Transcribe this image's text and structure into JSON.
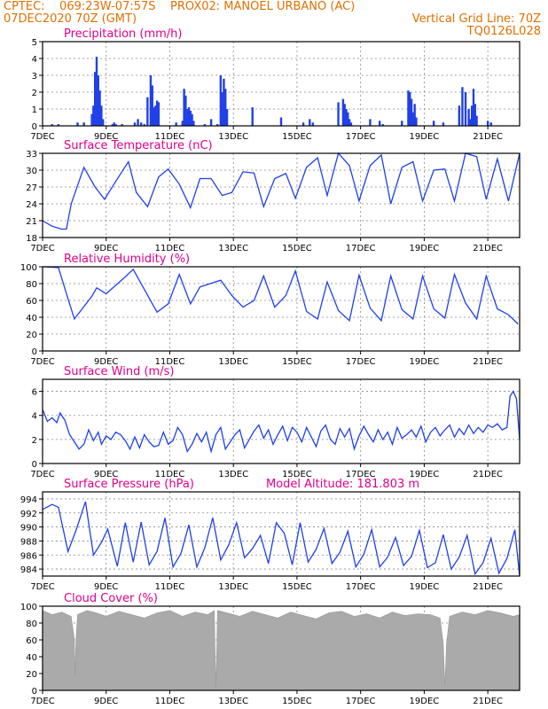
{
  "header": {
    "station": "CPTEC:    069:23W-07:57S    PROX02: MANOEL URBANO (AC)",
    "run": "07DEC2020 70Z (GMT)",
    "grid_note": "Vertical Grid Line: 70Z",
    "code": "TQ0126L028"
  },
  "colors": {
    "series": "#2040e8",
    "cloud": "#aaaaaa",
    "title": "#e0008a",
    "header": "#e07000",
    "grid": "#888888"
  },
  "chart_data": [
    {
      "id": "precip",
      "type": "bar",
      "title": "Precipitation (mm/h)",
      "ylim": [
        0,
        5
      ],
      "yticks": [
        "0",
        "1",
        "2",
        "3",
        "4",
        "5"
      ],
      "xticks": [
        "7DEC",
        "9DEC",
        "11DEC",
        "13DEC",
        "15DEC",
        "17DEC",
        "19DEC",
        "21DEC"
      ],
      "xlim": [
        0,
        15
      ],
      "x": [
        0.3,
        0.5,
        1.1,
        1.3,
        1.55,
        1.6,
        1.65,
        1.7,
        1.75,
        1.8,
        1.85,
        1.9,
        2.2,
        2.25,
        2.3,
        2.5,
        2.9,
        3.0,
        3.1,
        3.2,
        3.3,
        3.4,
        3.45,
        3.5,
        3.55,
        3.6,
        3.65,
        4.2,
        4.4,
        4.45,
        4.5,
        4.55,
        4.6,
        4.65,
        4.7,
        4.75,
        5.1,
        5.3,
        5.5,
        5.6,
        5.65,
        5.7,
        5.75,
        5.8,
        6.6,
        7.5,
        8.2,
        8.4,
        8.5,
        9.3,
        9.45,
        9.5,
        9.55,
        9.6,
        9.65,
        9.7,
        10.3,
        10.6,
        10.7,
        11.3,
        11.5,
        11.55,
        11.6,
        11.65,
        11.7,
        11.75,
        12.3,
        12.6,
        13.1,
        13.2,
        13.3,
        13.4,
        13.45,
        13.5,
        13.55,
        13.6,
        13.65,
        14.0,
        14.1
      ],
      "values": [
        0.1,
        0.1,
        0.2,
        0.2,
        0.7,
        1.2,
        3.2,
        4.1,
        3.0,
        2.1,
        1.2,
        0.4,
        0.1,
        0.2,
        0.1,
        0.1,
        0.2,
        0.4,
        0.2,
        0.1,
        1.7,
        3.0,
        2.4,
        1.1,
        1.2,
        1.5,
        1.4,
        0.2,
        0.3,
        2.2,
        1.8,
        1.0,
        1.1,
        0.9,
        0.7,
        0.3,
        0.1,
        0.4,
        0.1,
        3.0,
        2.0,
        2.8,
        2.2,
        1.0,
        1.1,
        0.5,
        0.2,
        0.4,
        0.2,
        1.4,
        1.6,
        1.3,
        1.0,
        0.8,
        0.4,
        0.2,
        0.4,
        0.3,
        0.1,
        0.3,
        2.1,
        2.0,
        1.6,
        0.8,
        1.3,
        0.5,
        0.3,
        0.2,
        1.2,
        2.3,
        2.0,
        1.0,
        0.4,
        1.2,
        2.2,
        1.3,
        0.6,
        0.3,
        0.2
      ]
    },
    {
      "id": "temp",
      "type": "line",
      "title": "Surface Temperature (nC)",
      "ylim": [
        18,
        33
      ],
      "yticks": [
        "18",
        "21",
        "24",
        "27",
        "30",
        "33"
      ],
      "xticks": [
        "7DEC",
        "9DEC",
        "11DEC",
        "13DEC",
        "15DEC",
        "17DEC",
        "19DEC",
        "21DEC"
      ],
      "xlim": [
        0,
        15
      ],
      "x": [
        0.0,
        0.3,
        0.6,
        0.75,
        0.9,
        1.3,
        1.65,
        1.95,
        2.3,
        2.7,
        2.95,
        3.3,
        3.65,
        3.95,
        4.3,
        4.65,
        4.95,
        5.3,
        5.65,
        5.95,
        6.3,
        6.65,
        6.95,
        7.3,
        7.65,
        7.95,
        8.3,
        8.65,
        8.95,
        9.3,
        9.65,
        9.95,
        10.3,
        10.65,
        10.95,
        11.3,
        11.65,
        11.95,
        12.3,
        12.65,
        12.95,
        13.3,
        13.65,
        13.95,
        14.3,
        14.65,
        15.0
      ],
      "values": [
        21,
        20,
        19.5,
        19.5,
        24,
        30.5,
        27,
        24.8,
        28,
        31.5,
        26,
        23.5,
        28.8,
        30.2,
        27.5,
        23.3,
        28.5,
        28.5,
        25.5,
        26,
        29.7,
        29.5,
        23.5,
        28.5,
        29.4,
        25,
        30.5,
        32.2,
        25.5,
        33,
        30.8,
        24.5,
        30.8,
        32.7,
        24,
        30.5,
        31.5,
        24.5,
        30,
        30.2,
        24.5,
        33,
        32.4,
        24.8,
        32,
        24.5,
        33
      ]
    },
    {
      "id": "rh",
      "type": "line",
      "title": "Relative Humidity (%)",
      "ylim": [
        0,
        100
      ],
      "yticks": [
        "0",
        "20",
        "40",
        "60",
        "80",
        "100"
      ],
      "xticks": [
        "7DEC",
        "9DEC",
        "11DEC",
        "13DEC",
        "15DEC",
        "17DEC",
        "19DEC",
        "21DEC"
      ],
      "xlim": [
        0,
        15
      ],
      "x": [
        0.0,
        0.5,
        0.8,
        1.0,
        1.55,
        1.7,
        2.0,
        2.6,
        2.85,
        3.6,
        3.95,
        4.3,
        4.65,
        4.95,
        5.6,
        5.95,
        6.3,
        6.65,
        6.95,
        7.3,
        7.65,
        7.95,
        8.3,
        8.65,
        8.95,
        9.3,
        9.65,
        9.95,
        10.3,
        10.65,
        10.95,
        11.3,
        11.65,
        11.95,
        12.3,
        12.65,
        12.95,
        13.3,
        13.65,
        13.95,
        14.3,
        14.65,
        14.95
      ],
      "values": [
        100,
        99,
        62,
        38,
        65,
        75,
        68,
        88,
        97,
        46,
        56,
        91,
        56,
        76,
        84,
        66,
        52,
        60,
        89,
        52,
        66,
        95,
        47,
        38,
        82,
        48,
        36,
        90,
        51,
        36,
        89,
        49,
        38,
        89,
        50,
        39,
        91,
        57,
        38,
        89,
        50,
        43,
        32
      ]
    },
    {
      "id": "wind",
      "type": "line",
      "title": "Surface Wind (m/s)",
      "ylim": [
        0,
        7
      ],
      "yticks": [
        "0",
        "2",
        "4",
        "6"
      ],
      "xticks": [
        "7DEC",
        "9DEC",
        "11DEC",
        "13DEC",
        "15DEC",
        "17DEC",
        "19DEC",
        "21DEC"
      ],
      "xlim": [
        0,
        15
      ],
      "x": [
        0.0,
        0.15,
        0.3,
        0.45,
        0.55,
        0.7,
        0.85,
        1.0,
        1.15,
        1.3,
        1.45,
        1.6,
        1.75,
        1.85,
        2.0,
        2.15,
        2.3,
        2.45,
        2.6,
        2.75,
        2.9,
        3.05,
        3.2,
        3.35,
        3.5,
        3.65,
        3.8,
        3.95,
        4.1,
        4.25,
        4.4,
        4.55,
        4.7,
        4.85,
        5.0,
        5.15,
        5.3,
        5.45,
        5.6,
        5.75,
        5.9,
        6.05,
        6.2,
        6.35,
        6.5,
        6.65,
        6.8,
        6.95,
        7.1,
        7.25,
        7.4,
        7.55,
        7.7,
        7.85,
        8.0,
        8.15,
        8.3,
        8.45,
        8.6,
        8.75,
        8.9,
        9.05,
        9.2,
        9.35,
        9.5,
        9.65,
        9.8,
        9.95,
        10.1,
        10.25,
        10.4,
        10.55,
        10.7,
        10.85,
        11.0,
        11.15,
        11.3,
        11.45,
        11.6,
        11.75,
        11.9,
        12.05,
        12.2,
        12.35,
        12.5,
        12.65,
        12.8,
        12.95,
        13.1,
        13.25,
        13.4,
        13.55,
        13.7,
        13.85,
        14.0,
        14.15,
        14.3,
        14.45,
        14.6,
        14.7,
        14.8,
        14.9,
        15.0
      ],
      "values": [
        4.5,
        3.5,
        3.8,
        3.4,
        4.2,
        3.6,
        2.4,
        1.8,
        1.2,
        1.6,
        2.8,
        1.9,
        2.6,
        1.6,
        2.3,
        2.0,
        2.6,
        2.4,
        1.9,
        1.2,
        2.2,
        1.3,
        2.4,
        1.8,
        1.4,
        1.5,
        2.6,
        1.6,
        1.9,
        3.0,
        2.4,
        1.0,
        1.6,
        2.5,
        1.8,
        2.6,
        1.0,
        2.4,
        3.0,
        1.2,
        1.8,
        2.4,
        2.8,
        1.3,
        2.0,
        2.7,
        3.2,
        2.1,
        2.8,
        1.6,
        2.4,
        3.1,
        1.9,
        3.0,
        2.6,
        1.8,
        3.0,
        2.2,
        1.4,
        2.7,
        3.2,
        2.0,
        1.6,
        2.9,
        2.2,
        2.9,
        1.2,
        2.3,
        3.1,
        2.4,
        1.8,
        2.8,
        2.0,
        2.6,
        1.6,
        3.0,
        2.1,
        2.4,
        2.8,
        2.2,
        3.1,
        1.8,
        2.6,
        3.0,
        2.3,
        2.8,
        3.2,
        2.2,
        2.9,
        2.4,
        3.2,
        2.5,
        3.0,
        2.6,
        3.2,
        3.0,
        3.3,
        2.8,
        3.0,
        5.6,
        6.0,
        5.4,
        2.0
      ]
    },
    {
      "id": "pres",
      "type": "line",
      "title": "Surface Pressure (hPa)",
      "note": "Model Altitude: 181.803 m",
      "ylim": [
        983,
        995
      ],
      "yticks": [
        "984",
        "986",
        "988",
        "990",
        "992",
        "994"
      ],
      "xticks": [
        "7DEC",
        "9DEC",
        "11DEC",
        "13DEC",
        "15DEC",
        "17DEC",
        "19DEC",
        "21DEC"
      ],
      "xlim": [
        0,
        15
      ],
      "x": [
        0.0,
        0.3,
        0.5,
        0.8,
        1.05,
        1.35,
        1.6,
        1.85,
        2.05,
        2.35,
        2.6,
        2.85,
        3.1,
        3.35,
        3.6,
        3.85,
        4.1,
        4.35,
        4.6,
        4.85,
        5.1,
        5.35,
        5.6,
        5.85,
        6.1,
        6.35,
        6.6,
        6.85,
        7.1,
        7.35,
        7.6,
        7.85,
        8.1,
        8.35,
        8.6,
        8.85,
        9.1,
        9.35,
        9.6,
        9.85,
        10.1,
        10.35,
        10.6,
        10.85,
        11.1,
        11.35,
        11.6,
        11.85,
        12.1,
        12.35,
        12.6,
        12.85,
        13.1,
        13.35,
        13.6,
        13.85,
        14.1,
        14.35,
        14.6,
        14.85,
        15.0
      ],
      "values": [
        992.5,
        993.2,
        992.8,
        986.5,
        989.5,
        993.6,
        986,
        987.8,
        989.7,
        984.4,
        990.6,
        985,
        990.7,
        984.6,
        986.5,
        991.3,
        984.3,
        986.2,
        990.3,
        984.3,
        987,
        991.3,
        985.3,
        987.4,
        990.6,
        985.6,
        986.9,
        988.8,
        984.8,
        990.6,
        989.1,
        984.6,
        990.6,
        985,
        986.8,
        989.8,
        984.8,
        986.4,
        989.4,
        984.3,
        986.1,
        989.6,
        984.3,
        985.7,
        988.5,
        984.5,
        985.8,
        989.5,
        984.2,
        984.9,
        988.9,
        984,
        985.7,
        988.8,
        983.3,
        984.9,
        988.4,
        983.4,
        985.5,
        989.6,
        983
      ]
    },
    {
      "id": "cloud",
      "type": "area",
      "title": "Cloud Cover (%)",
      "ylim": [
        0,
        100
      ],
      "yticks": [
        "0",
        "20",
        "40",
        "60",
        "80",
        "100"
      ],
      "xticks": [
        "7DEC",
        "9DEC",
        "11DEC",
        "13DEC",
        "15DEC",
        "17DEC",
        "19DEC",
        "21DEC"
      ],
      "xlim": [
        0,
        15
      ],
      "x": [
        0.0,
        0.3,
        0.6,
        0.9,
        1.0,
        1.02,
        1.05,
        1.1,
        1.4,
        1.7,
        2.0,
        2.4,
        2.8,
        3.2,
        3.6,
        4.0,
        4.4,
        4.8,
        5.2,
        5.4,
        5.45,
        5.5,
        5.8,
        6.2,
        6.6,
        7.0,
        7.4,
        7.8,
        8.2,
        8.6,
        9.0,
        9.4,
        9.8,
        10.2,
        10.6,
        11.0,
        11.4,
        11.8,
        12.2,
        12.5,
        12.6,
        12.65,
        12.7,
        12.8,
        13.2,
        13.6,
        14.0,
        14.4,
        14.8,
        15.0
      ],
      "values": [
        95,
        90,
        93,
        88,
        60,
        18,
        60,
        90,
        95,
        92,
        88,
        94,
        90,
        86,
        92,
        95,
        88,
        93,
        90,
        95,
        0,
        95,
        92,
        88,
        94,
        90,
        86,
        93,
        89,
        85,
        92,
        94,
        88,
        91,
        86,
        93,
        89,
        91,
        90,
        86,
        55,
        5,
        55,
        88,
        93,
        90,
        95,
        92,
        88,
        90
      ]
    }
  ]
}
